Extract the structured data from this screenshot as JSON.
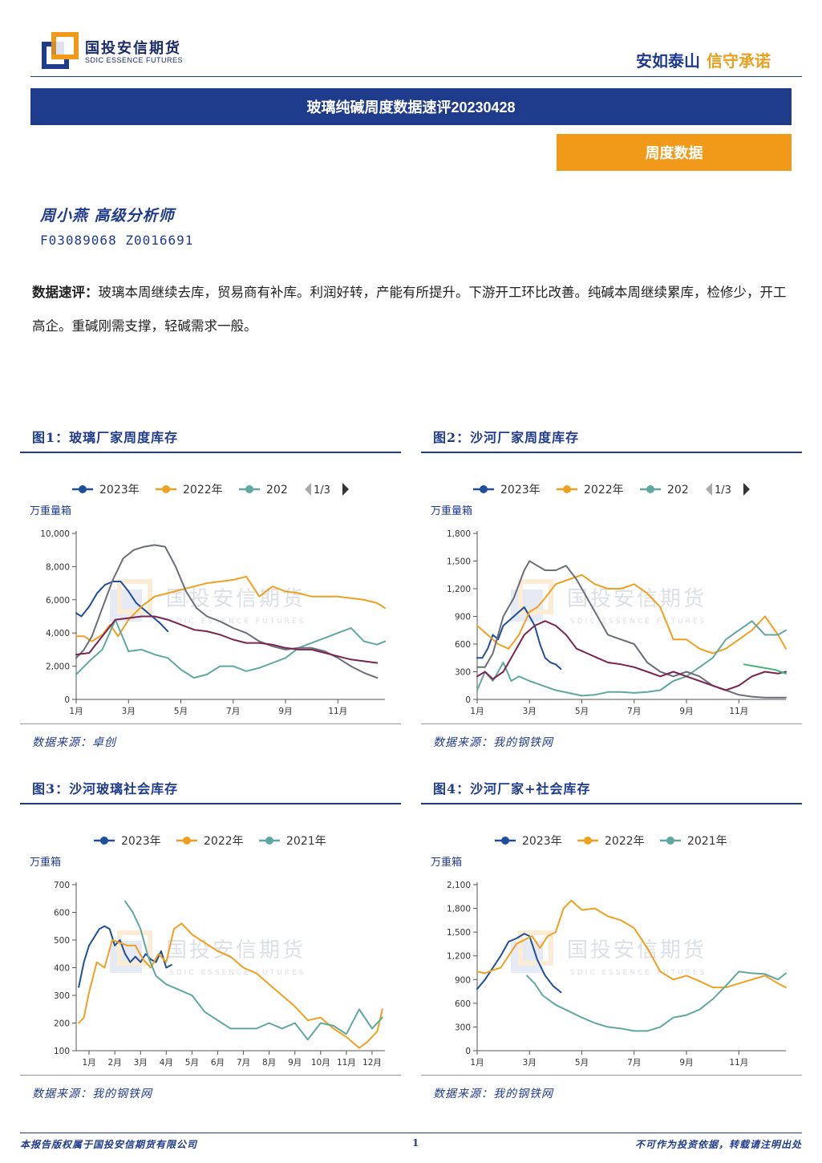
{
  "header": {
    "logo_cn": "国投安信期货",
    "logo_en": "SDIC ESSENCE FUTURES",
    "slogan_a": "安如泰山",
    "slogan_b": "信守承诺",
    "colors": {
      "navy": "#1f3b8c",
      "orange": "#f19a1a"
    }
  },
  "title": "玻璃纯碱周度数据速评20230428",
  "tag": "周度数据",
  "author": {
    "name": "周小燕  高级分析师",
    "ids": "F03089068  Z0016691"
  },
  "summary": {
    "label": "数据速评：",
    "text": "玻璃本周继续去库，贸易商有补库。利润好转，产能有所提升。下游开工环比改善。纯碱本周继续累库，检修少，开工高企。重碱刚需支撑，轻碱需求一般。"
  },
  "watermark": {
    "cn": "国投安信期货",
    "en": "SDIC ESSENCE FUTURES"
  },
  "figures": [
    {
      "title": "图1：玻璃厂家周度库存",
      "source": "数据来源：卓创"
    },
    {
      "title": "图2：沙河厂家周度库存",
      "source": "数据来源：我的钢铁网"
    },
    {
      "title": "图3：沙河玻璃社会库存",
      "source": "数据来源：我的钢铁网"
    },
    {
      "title": "图4：沙河厂家+社会库存",
      "source": "数据来源：我的钢铁网"
    }
  ],
  "chart_data": [
    {
      "type": "line",
      "ylabel": "万重量箱",
      "legend": [
        "2023年",
        "2022年",
        "202"
      ],
      "pager": "1/3",
      "ylim": [
        0,
        10000
      ],
      "yticks": [
        0,
        2000,
        4000,
        6000,
        8000,
        10000
      ],
      "ytick_labels": [
        "0",
        "2,000",
        "4,000",
        "6,000",
        "8,000",
        "10,000"
      ],
      "xlim": [
        1,
        12.8
      ],
      "xticks": [
        1,
        3,
        5,
        7,
        9,
        11
      ],
      "xtick_labels": [
        "1月",
        "3月",
        "5月",
        "7月",
        "9月",
        "11月"
      ],
      "series": [
        {
          "name": "2023年",
          "color": "#1f4e9c",
          "x": [
            1,
            1.2,
            1.5,
            1.8,
            2.1,
            2.4,
            2.7,
            3.0,
            3.3,
            3.6,
            3.9,
            4.2,
            4.5
          ],
          "y": [
            5200,
            5000,
            5600,
            6400,
            6900,
            7100,
            7100,
            6500,
            5800,
            5400,
            5000,
            4600,
            4100
          ]
        },
        {
          "name": "2022年",
          "color": "#f0a020",
          "x": [
            1,
            1.3,
            1.6,
            2.0,
            2.3,
            2.6,
            3,
            3.5,
            4,
            4.5,
            5,
            5.5,
            6,
            6.5,
            7,
            7.5,
            8,
            8.5,
            9,
            9.5,
            10,
            10.5,
            11,
            11.5,
            12,
            12.5,
            12.8
          ],
          "y": [
            3800,
            3800,
            3500,
            3900,
            4500,
            3800,
            4800,
            5600,
            6200,
            6400,
            6600,
            6800,
            7000,
            7100,
            7200,
            7400,
            6200,
            6800,
            6500,
            6400,
            6200,
            6200,
            6200,
            6100,
            6000,
            5800,
            5500
          ]
        },
        {
          "name": "",
          "color": "#5fa8a0",
          "x": [
            1,
            1.5,
            2,
            2.5,
            3,
            3.5,
            4,
            4.5,
            5,
            5.5,
            6,
            6.5,
            7,
            7.5,
            8,
            8.5,
            9,
            9.5,
            10,
            10.5,
            11,
            11.5,
            12,
            12.5,
            12.8
          ],
          "y": [
            1500,
            2300,
            3000,
            4800,
            2900,
            3000,
            2700,
            2500,
            1800,
            1300,
            1500,
            2000,
            2000,
            1700,
            1900,
            2200,
            2500,
            3100,
            3400,
            3700,
            4000,
            4300,
            3500,
            3300,
            3500
          ]
        },
        {
          "name": "",
          "color": "#6a6e78",
          "x": [
            1,
            1.3,
            1.6,
            2.0,
            2.4,
            2.8,
            3.2,
            3.6,
            4.0,
            4.4,
            4.8,
            5.2,
            5.6,
            6,
            6.5,
            7,
            7.5,
            8,
            8.5,
            9,
            9.5,
            10,
            10.5,
            11,
            11.5,
            12,
            12.5
          ],
          "y": [
            2500,
            3000,
            3800,
            5500,
            7200,
            8500,
            9000,
            9200,
            9300,
            9200,
            8000,
            6500,
            5500,
            5000,
            4700,
            4300,
            4000,
            3500,
            3200,
            3000,
            3100,
            3100,
            2900,
            2500,
            2000,
            1600,
            1300
          ]
        },
        {
          "name": "",
          "color": "#7a2450",
          "x": [
            1,
            1.5,
            2,
            2.5,
            3,
            3.5,
            4,
            4.5,
            5,
            5.5,
            6,
            6.5,
            7,
            7.5,
            8,
            8.5,
            9,
            9.5,
            10,
            10.5,
            11,
            11.5,
            12,
            12.5
          ],
          "y": [
            2700,
            2800,
            3800,
            4800,
            4900,
            5000,
            5000,
            4800,
            4500,
            4200,
            4100,
            3900,
            3600,
            3400,
            3400,
            3300,
            3100,
            3000,
            3000,
            2800,
            2600,
            2400,
            2300,
            2200
          ]
        }
      ]
    },
    {
      "type": "line",
      "ylabel": "万重量箱",
      "legend": [
        "2023年",
        "2022年",
        "202"
      ],
      "pager": "1/3",
      "ylim": [
        0,
        1800
      ],
      "yticks": [
        0,
        300,
        600,
        900,
        1200,
        1500,
        1800
      ],
      "ytick_labels": [
        "0",
        "300",
        "600",
        "900",
        "1,200",
        "1,500",
        "1,800"
      ],
      "xlim": [
        1,
        12.8
      ],
      "xticks": [
        1,
        3,
        5,
        7,
        9,
        11
      ],
      "xtick_labels": [
        "1月",
        "3月",
        "5月",
        "7月",
        "9月",
        "11月"
      ],
      "series": [
        {
          "name": "2023年",
          "color": "#1f4e9c",
          "x": [
            1,
            1.2,
            1.4,
            1.6,
            1.8,
            2.0,
            2.2,
            2.4,
            2.6,
            2.8,
            3.0,
            3.2,
            3.4,
            3.6,
            3.8,
            4.0,
            4.2
          ],
          "y": [
            450,
            450,
            550,
            700,
            650,
            800,
            850,
            900,
            950,
            1000,
            900,
            800,
            600,
            450,
            400,
            380,
            330
          ]
        },
        {
          "name": "2022年",
          "color": "#f0a020",
          "x": [
            1,
            1.4,
            1.8,
            2.2,
            2.6,
            3,
            3.3,
            3.6,
            4,
            4.5,
            5,
            5.5,
            6,
            6.5,
            7,
            7.5,
            8,
            8.5,
            9,
            9.5,
            10,
            10.5,
            11,
            11.5,
            12,
            12.5,
            12.8
          ],
          "y": [
            800,
            700,
            600,
            550,
            700,
            950,
            1000,
            1100,
            1250,
            1300,
            1350,
            1250,
            1200,
            1200,
            1250,
            1150,
            1000,
            650,
            650,
            550,
            500,
            550,
            650,
            750,
            900,
            700,
            550
          ]
        },
        {
          "name": "",
          "color": "#5fa8a0",
          "x": [
            1,
            1.3,
            1.6,
            2.0,
            2.3,
            2.6,
            3,
            3.5,
            4,
            4.5,
            5,
            5.5,
            6,
            6.5,
            7,
            7.5,
            8,
            8.5,
            9,
            9.5,
            10,
            10.5,
            11,
            11.5,
            12,
            12.5,
            12.8
          ],
          "y": [
            100,
            300,
            200,
            400,
            200,
            250,
            200,
            150,
            100,
            70,
            40,
            50,
            80,
            80,
            70,
            80,
            100,
            200,
            250,
            350,
            450,
            650,
            750,
            850,
            700,
            700,
            750
          ]
        },
        {
          "name": "",
          "color": "#6a6e78",
          "x": [
            1,
            1.3,
            1.6,
            2.0,
            2.4,
            2.8,
            3.0,
            3.3,
            3.6,
            4,
            4.4,
            4.8,
            5.2,
            5.6,
            6,
            6.5,
            7,
            7.5,
            8,
            8.5,
            9,
            9.5,
            10,
            10.5,
            11,
            11.5,
            12,
            12.5,
            12.8
          ],
          "y": [
            350,
            350,
            500,
            900,
            1100,
            1400,
            1500,
            1450,
            1400,
            1400,
            1450,
            1300,
            1100,
            900,
            700,
            650,
            600,
            400,
            300,
            250,
            300,
            250,
            150,
            100,
            50,
            30,
            20,
            20,
            20
          ]
        },
        {
          "name": "",
          "color": "#7a2450",
          "x": [
            1,
            1.3,
            1.6,
            2.0,
            2.4,
            2.8,
            3.2,
            3.6,
            4,
            4.4,
            4.8,
            5.2,
            5.6,
            6,
            6.5,
            7,
            7.5,
            8,
            8.5,
            9,
            9.5,
            10,
            10.5,
            11,
            11.5,
            12,
            12.5,
            12.8
          ],
          "y": [
            250,
            300,
            220,
            300,
            500,
            700,
            800,
            850,
            800,
            700,
            550,
            500,
            450,
            400,
            380,
            350,
            300,
            250,
            300,
            250,
            200,
            150,
            100,
            150,
            250,
            300,
            280,
            300
          ]
        },
        {
          "name": "",
          "color": "#46b47a",
          "x": [
            11.2,
            11.6,
            12.0,
            12.4,
            12.8
          ],
          "y": [
            380,
            360,
            340,
            320,
            280
          ]
        }
      ]
    },
    {
      "type": "line",
      "ylabel": "万重箱",
      "legend": [
        "2023年",
        "2022年",
        "2021年"
      ],
      "ylim": [
        100,
        700
      ],
      "yticks": [
        100,
        200,
        300,
        400,
        500,
        600,
        700
      ],
      "ytick_labels": [
        "100",
        "200",
        "300",
        "400",
        "500",
        "600",
        "700"
      ],
      "xlim": [
        0.5,
        12.5
      ],
      "xticks": [
        1,
        2,
        3,
        4,
        5,
        6,
        7,
        8,
        9,
        10,
        11,
        12
      ],
      "xtick_labels": [
        "1月",
        "2月",
        "3月",
        "4月",
        "5月",
        "6月",
        "7月",
        "8月",
        "9月",
        "10月",
        "11月",
        "12月"
      ],
      "series": [
        {
          "name": "2023年",
          "color": "#1f4e9c",
          "x": [
            0.6,
            0.8,
            1.0,
            1.2,
            1.4,
            1.6,
            1.8,
            2.0,
            2.2,
            2.4,
            2.6,
            2.8,
            3.0,
            3.2,
            3.4,
            3.6,
            3.8,
            4.0,
            4.2
          ],
          "y": [
            330,
            420,
            480,
            510,
            540,
            550,
            540,
            480,
            500,
            450,
            420,
            440,
            420,
            450,
            430,
            420,
            460,
            400,
            410
          ]
        },
        {
          "name": "2022年",
          "color": "#f0a020",
          "x": [
            0.6,
            0.8,
            1.0,
            1.3,
            1.6,
            1.9,
            2.2,
            2.5,
            2.8,
            3.1,
            3.4,
            3.7,
            4.0,
            4.3,
            4.6,
            5.0,
            5.5,
            6.0,
            6.5,
            7.0,
            7.5,
            8.0,
            8.5,
            9.0,
            9.5,
            10.0,
            10.5,
            11.0,
            11.5,
            11.8,
            12.2,
            12.4
          ],
          "y": [
            200,
            220,
            310,
            420,
            400,
            500,
            490,
            480,
            480,
            430,
            400,
            450,
            420,
            540,
            560,
            520,
            490,
            460,
            440,
            400,
            380,
            340,
            300,
            260,
            210,
            220,
            180,
            150,
            110,
            130,
            170,
            250
          ]
        },
        {
          "name": "2021年",
          "color": "#5fa8a0",
          "x": [
            2.4,
            2.7,
            3.0,
            3.3,
            3.6,
            4.0,
            4.5,
            5.0,
            5.5,
            6.0,
            6.5,
            7.0,
            7.5,
            8.0,
            8.5,
            9.0,
            9.5,
            10.0,
            10.5,
            11.0,
            11.5,
            12.0,
            12.4
          ],
          "y": [
            640,
            600,
            540,
            440,
            370,
            340,
            320,
            300,
            240,
            210,
            180,
            180,
            180,
            200,
            180,
            200,
            140,
            200,
            190,
            160,
            250,
            180,
            220
          ]
        }
      ]
    },
    {
      "type": "line",
      "ylabel": "万重箱",
      "legend": [
        "2023年",
        "2022年",
        "2021年"
      ],
      "ylim": [
        0,
        2100
      ],
      "yticks": [
        0,
        300,
        600,
        900,
        1200,
        1500,
        1800,
        2100
      ],
      "ytick_labels": [
        "0",
        "300",
        "600",
        "900",
        "1,200",
        "1,500",
        "1,800",
        "2,100"
      ],
      "xlim": [
        1,
        12.8
      ],
      "xticks": [
        1,
        3,
        5,
        7,
        9,
        11
      ],
      "xtick_labels": [
        "1月",
        "3月",
        "5月",
        "7月",
        "9月",
        "11月"
      ],
      "series": [
        {
          "name": "2023年",
          "color": "#1f4e9c",
          "x": [
            1,
            1.3,
            1.6,
            1.9,
            2.2,
            2.5,
            2.8,
            3.0,
            3.3,
            3.6,
            3.9,
            4.2
          ],
          "y": [
            780,
            900,
            1050,
            1200,
            1380,
            1420,
            1480,
            1450,
            1150,
            950,
            820,
            740
          ]
        },
        {
          "name": "2022年",
          "color": "#f0a020",
          "x": [
            1,
            1.3,
            1.6,
            1.9,
            2.2,
            2.5,
            2.8,
            3.1,
            3.4,
            3.7,
            4.0,
            4.3,
            4.6,
            5.0,
            5.5,
            6.0,
            6.5,
            7.0,
            7.5,
            8.0,
            8.5,
            9.0,
            9.5,
            10.0,
            10.5,
            11.0,
            11.5,
            12.0,
            12.5,
            12.8
          ],
          "y": [
            1000,
            980,
            1020,
            1050,
            1200,
            1350,
            1400,
            1450,
            1300,
            1450,
            1500,
            1800,
            1900,
            1780,
            1800,
            1700,
            1650,
            1550,
            1300,
            1000,
            900,
            950,
            880,
            800,
            800,
            850,
            900,
            950,
            850,
            800
          ]
        },
        {
          "name": "2021年",
          "color": "#5fa8a0",
          "x": [
            2.9,
            3.2,
            3.5,
            4.0,
            4.5,
            5.0,
            5.5,
            6.0,
            6.5,
            7.0,
            7.5,
            8.0,
            8.5,
            9.0,
            9.5,
            10.0,
            10.5,
            11.0,
            11.5,
            12.0,
            12.5,
            12.8
          ],
          "y": [
            950,
            850,
            700,
            580,
            500,
            420,
            350,
            300,
            280,
            250,
            250,
            300,
            420,
            450,
            520,
            650,
            820,
            1000,
            980,
            970,
            900,
            980
          ]
        }
      ]
    }
  ],
  "footer": {
    "left": "本报告版权属于国投安信期货有限公司",
    "page": "1",
    "right": "不可作为投资依据，转载请注明出处"
  }
}
